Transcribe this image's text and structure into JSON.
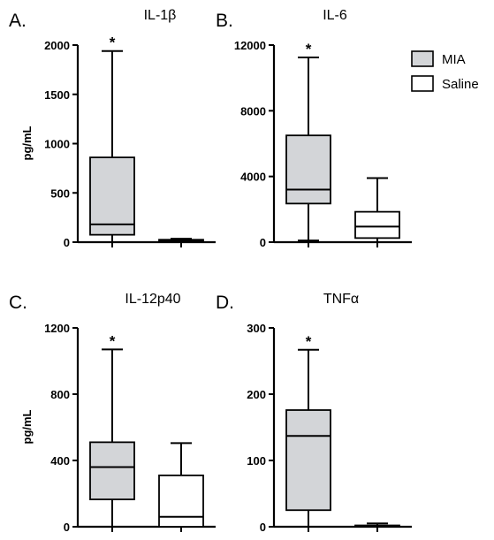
{
  "legend": [
    {
      "label": "MIA",
      "fill": "#d3d5d8"
    },
    {
      "label": "Saline",
      "fill": "#ffffff"
    }
  ],
  "chart_data": [
    {
      "type": "boxplot",
      "panel": "A.",
      "title": "IL-1β",
      "ylabel": "pg/mL",
      "ylim": [
        0,
        2000
      ],
      "yticks": [
        0,
        500,
        1000,
        1500,
        2000
      ],
      "ytick_labels": [
        "0",
        "500",
        "1000",
        "1500",
        "2000"
      ],
      "categories": [
        "MIA",
        "Saline"
      ],
      "significance": "*",
      "series": [
        {
          "name": "MIA",
          "whisker_low": 0,
          "q1": 75,
          "median": 180,
          "q3": 860,
          "whisker_high": 1940
        },
        {
          "name": "Saline",
          "whisker_low": 5,
          "q1": 10,
          "median": 18,
          "q3": 25,
          "whisker_high": 35
        }
      ]
    },
    {
      "type": "boxplot",
      "panel": "B.",
      "title": "IL-6",
      "ylabel": "",
      "ylim": [
        0,
        12000
      ],
      "yticks": [
        0,
        4000,
        8000,
        12000
      ],
      "ytick_labels": [
        "0",
        "4000",
        "8000",
        "12000"
      ],
      "categories": [
        "MIA",
        "Saline"
      ],
      "significance": "*",
      "series": [
        {
          "name": "MIA",
          "whisker_low": 100,
          "q1": 2350,
          "median": 3200,
          "q3": 6500,
          "whisker_high": 11250
        },
        {
          "name": "Saline",
          "whisker_low": 0,
          "q1": 250,
          "median": 950,
          "q3": 1850,
          "whisker_high": 3900
        }
      ]
    },
    {
      "type": "boxplot",
      "panel": "C.",
      "title": "IL-12p40",
      "ylabel": "pg/mL",
      "ylim": [
        0,
        1200
      ],
      "yticks": [
        0,
        400,
        800,
        1200
      ],
      "ytick_labels": [
        "0",
        "400",
        "800",
        "1200"
      ],
      "categories": [
        "MIA",
        "Saline"
      ],
      "significance": "*",
      "series": [
        {
          "name": "MIA",
          "whisker_low": 0,
          "q1": 165,
          "median": 360,
          "q3": 510,
          "whisker_high": 1070
        },
        {
          "name": "Saline",
          "whisker_low": 0,
          "q1": 0,
          "median": 60,
          "q3": 310,
          "whisker_high": 505
        }
      ]
    },
    {
      "type": "boxplot",
      "panel": "D.",
      "title": "TNFα",
      "ylabel": "",
      "ylim": [
        0,
        300
      ],
      "yticks": [
        0,
        100,
        200,
        300
      ],
      "ytick_labels": [
        "0",
        "100",
        "200",
        "300"
      ],
      "categories": [
        "MIA",
        "Saline"
      ],
      "significance": "*",
      "series": [
        {
          "name": "MIA",
          "whisker_low": 0,
          "q1": 25,
          "median": 137,
          "q3": 176,
          "whisker_high": 267
        },
        {
          "name": "Saline",
          "whisker_low": 0,
          "q1": 1,
          "median": 1,
          "q3": 2,
          "whisker_high": 5
        }
      ]
    }
  ]
}
